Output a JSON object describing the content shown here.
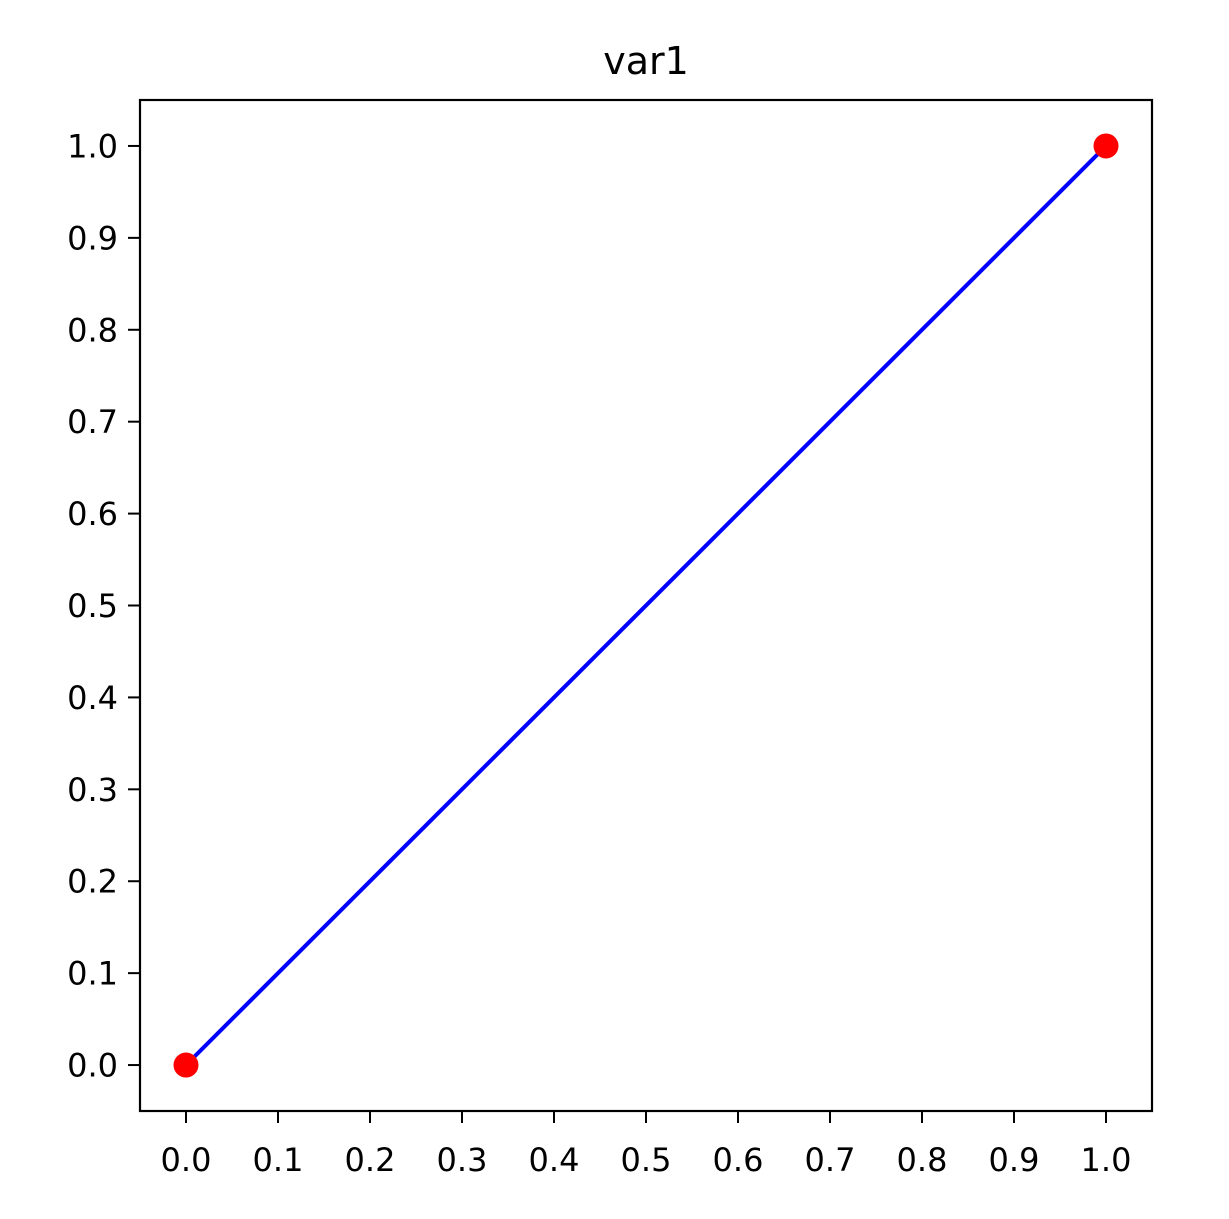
{
  "chart_data": {
    "type": "line",
    "title": "var1",
    "xlabel": "",
    "ylabel": "",
    "xlim": [
      -0.05,
      1.05
    ],
    "ylim": [
      -0.05,
      1.05
    ],
    "xticks": [
      "0.0",
      "0.1",
      "0.2",
      "0.3",
      "0.4",
      "0.5",
      "0.6",
      "0.7",
      "0.8",
      "0.9",
      "1.0"
    ],
    "yticks": [
      "0.0",
      "0.1",
      "0.2",
      "0.3",
      "0.4",
      "0.5",
      "0.6",
      "0.7",
      "0.8",
      "0.9",
      "1.0"
    ],
    "grid": false,
    "legend": false,
    "series": [
      {
        "style": "line",
        "color": "#0000ff",
        "x": [
          0.0,
          1.0
        ],
        "y": [
          0.0,
          1.0
        ]
      },
      {
        "style": "scatter",
        "color": "#ff0000",
        "x": [
          0.0,
          1.0
        ],
        "y": [
          0.0,
          1.0
        ]
      }
    ]
  }
}
